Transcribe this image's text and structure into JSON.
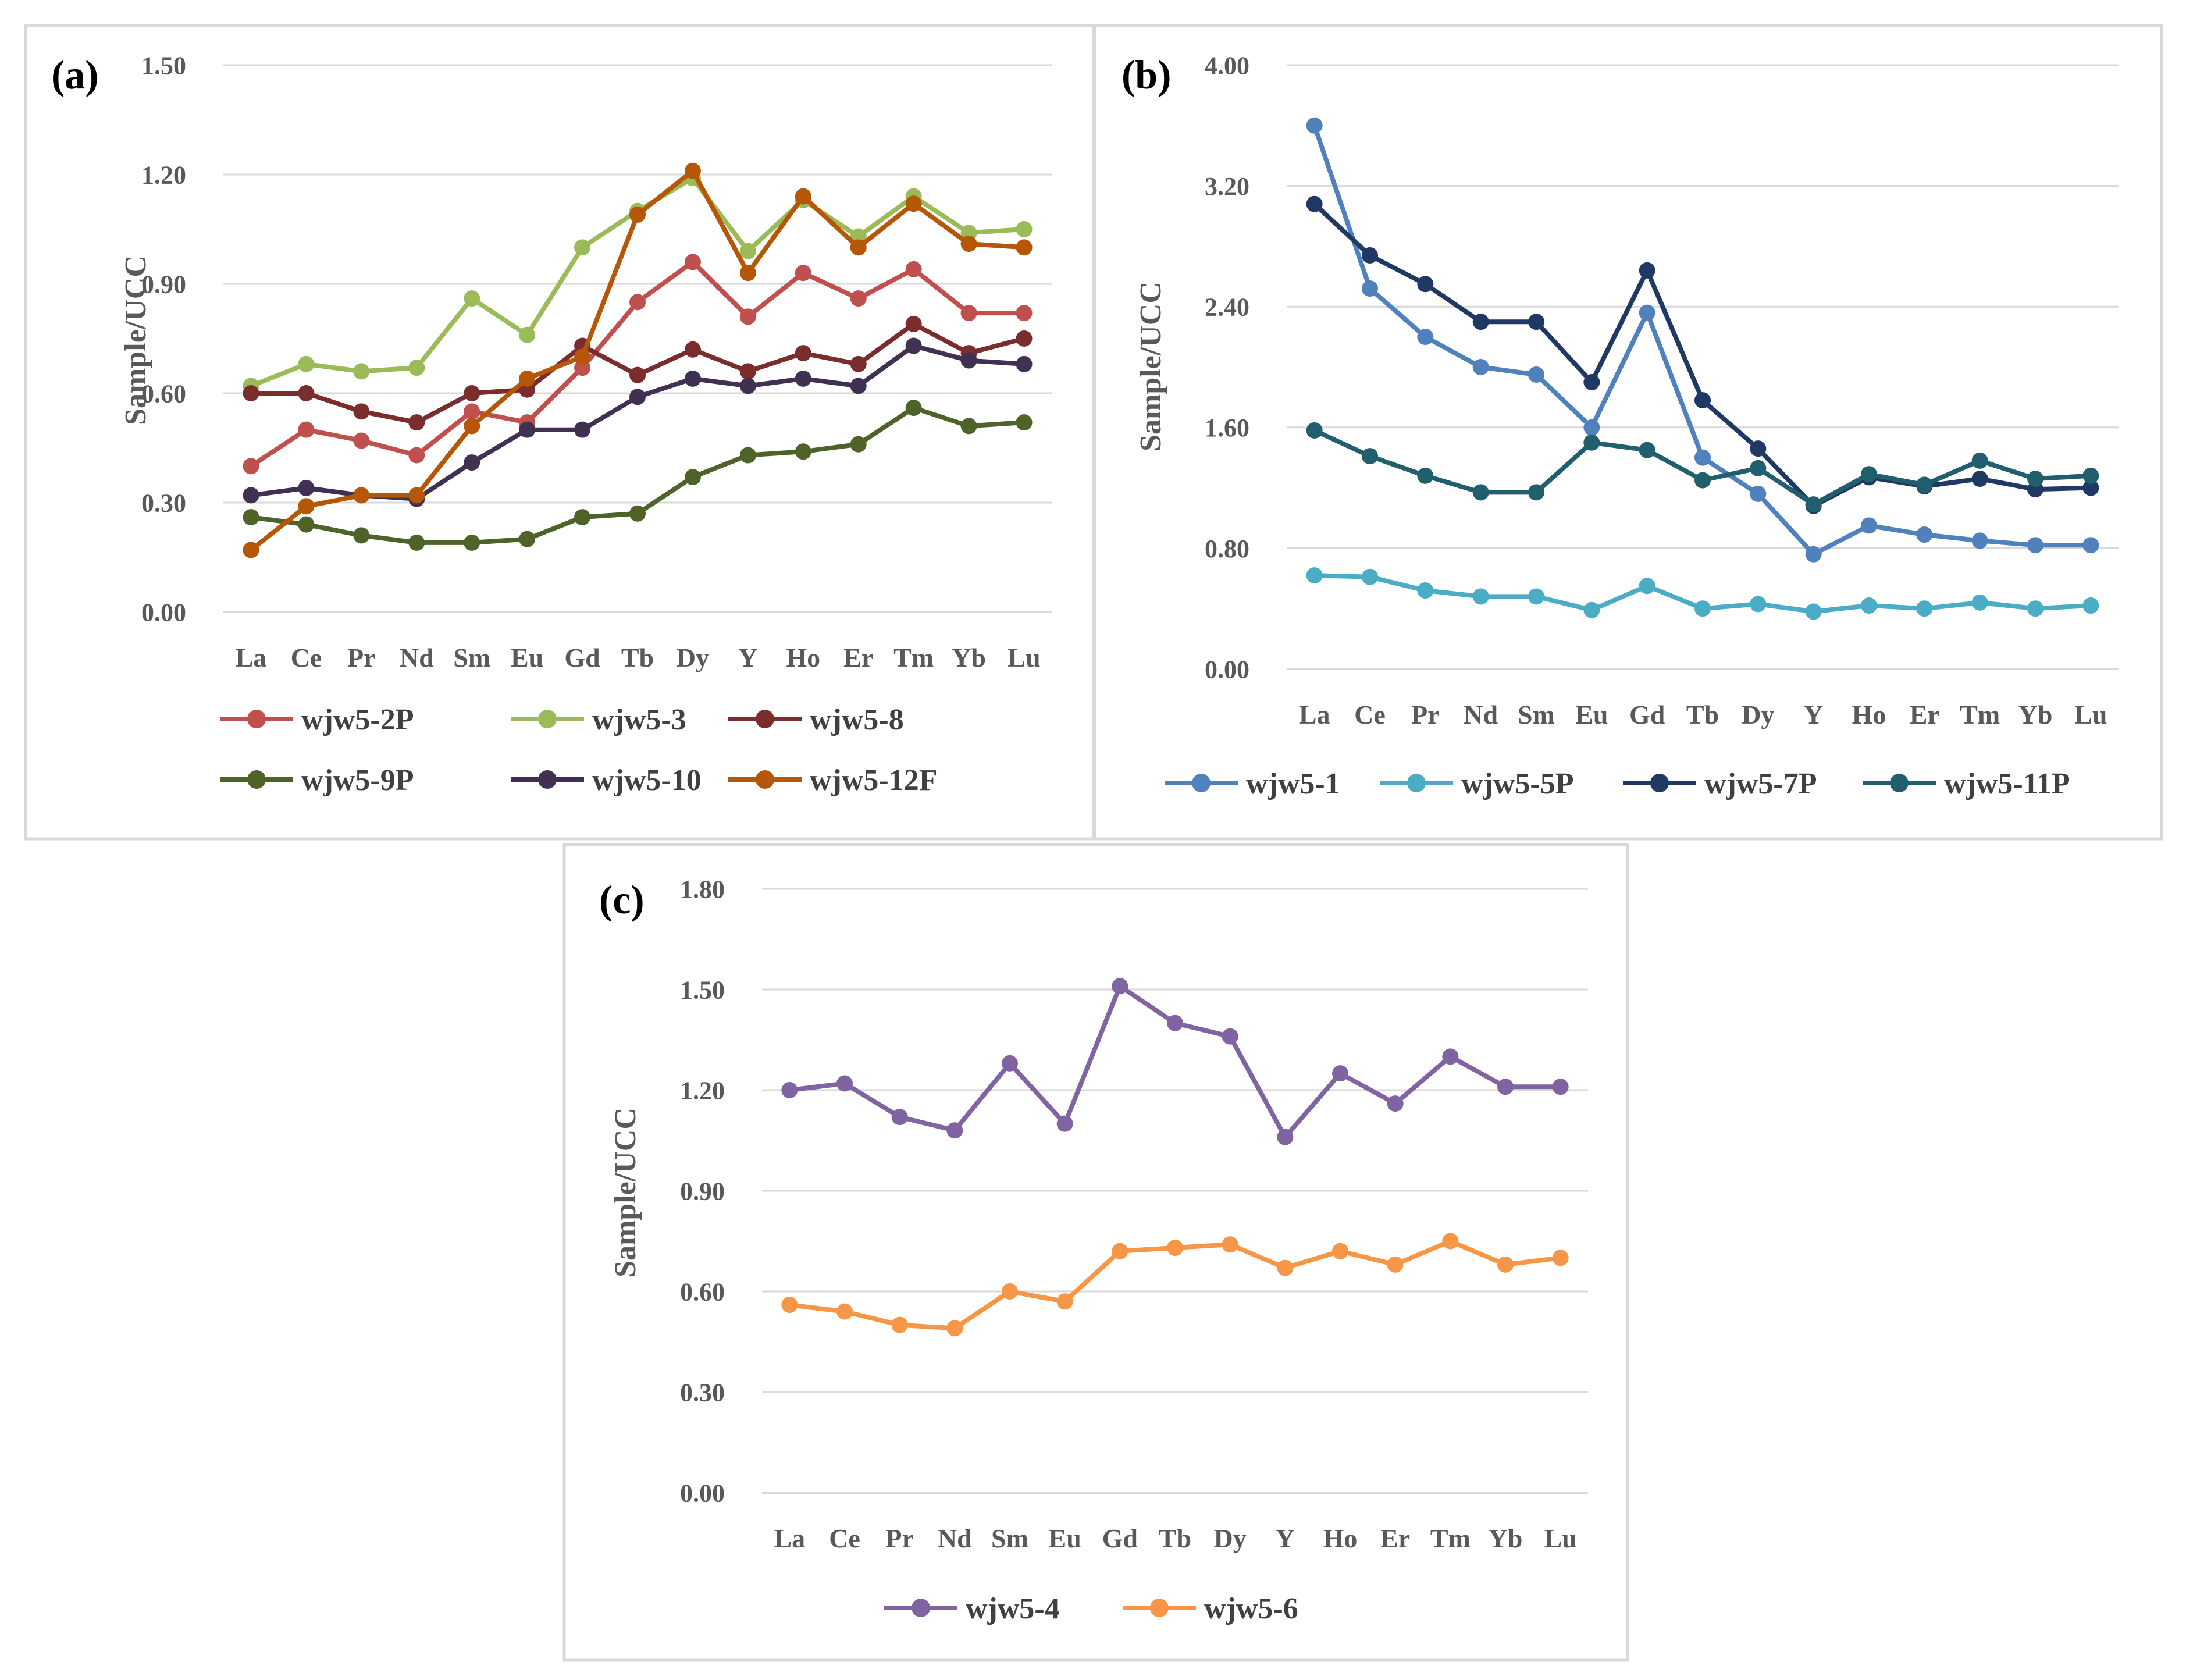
{
  "figure": {
    "colors": {
      "grid": "#d9d9d9",
      "axis": "#d9d9d9",
      "text": "#595959",
      "frame": "#d9d9d9"
    }
  },
  "chart_data": [
    {
      "type": "line",
      "panel_label": "(a)",
      "ylabel": "Sample/UCC",
      "ylim": [
        0,
        1.5
      ],
      "yticks": [
        "0.00",
        "0.30",
        "0.60",
        "0.90",
        "1.20",
        "1.50"
      ],
      "categories": [
        "La",
        "Ce",
        "Pr",
        "Nd",
        "Sm",
        "Eu",
        "Gd",
        "Tb",
        "Dy",
        "Y",
        "Ho",
        "Er",
        "Tm",
        "Yb",
        "Lu"
      ],
      "legend_position": "bottom",
      "series": [
        {
          "name": "wjw5-2P",
          "color": "#c0504d",
          "values": [
            0.4,
            0.5,
            0.47,
            0.43,
            0.55,
            0.52,
            0.67,
            0.85,
            0.96,
            0.81,
            0.93,
            0.86,
            0.94,
            0.82,
            0.82
          ]
        },
        {
          "name": "wjw5-3",
          "color": "#9bbb59",
          "values": [
            0.62,
            0.68,
            0.66,
            0.67,
            0.86,
            0.76,
            1.0,
            1.1,
            1.19,
            0.99,
            1.13,
            1.03,
            1.14,
            1.04,
            1.05
          ]
        },
        {
          "name": "wjw5-8",
          "color": "#7b2c2c",
          "values": [
            0.6,
            0.6,
            0.55,
            0.52,
            0.6,
            0.61,
            0.73,
            0.65,
            0.72,
            0.66,
            0.71,
            0.68,
            0.79,
            0.71,
            0.75
          ]
        },
        {
          "name": "wjw5-9P",
          "color": "#4f6228",
          "values": [
            0.26,
            0.24,
            0.21,
            0.19,
            0.19,
            0.2,
            0.26,
            0.27,
            0.37,
            0.43,
            0.44,
            0.46,
            0.56,
            0.51,
            0.52
          ]
        },
        {
          "name": "wjw5-10",
          "color": "#403152",
          "values": [
            0.32,
            0.34,
            0.32,
            0.31,
            0.41,
            0.5,
            0.5,
            0.59,
            0.64,
            0.62,
            0.64,
            0.62,
            0.73,
            0.69,
            0.68
          ]
        },
        {
          "name": "wjw5-12F",
          "color": "#b65708",
          "values": [
            0.17,
            0.29,
            0.32,
            0.32,
            0.51,
            0.64,
            0.7,
            1.09,
            1.21,
            0.93,
            1.14,
            1.0,
            1.12,
            1.01,
            1.0
          ]
        }
      ]
    },
    {
      "type": "line",
      "panel_label": "(b)",
      "ylabel": "Sample/UCC",
      "ylim": [
        0,
        4.0
      ],
      "yticks": [
        "0.00",
        "0.80",
        "1.60",
        "2.40",
        "3.20",
        "4.00"
      ],
      "categories": [
        "La",
        "Ce",
        "Pr",
        "Nd",
        "Sm",
        "Eu",
        "Gd",
        "Tb",
        "Dy",
        "Y",
        "Ho",
        "Er",
        "Tm",
        "Yb",
        "Lu"
      ],
      "legend_position": "bottom",
      "series": [
        {
          "name": "wjw5-1",
          "color": "#4f81bd",
          "values": [
            3.6,
            2.52,
            2.2,
            2.0,
            1.95,
            1.6,
            2.36,
            1.4,
            1.16,
            0.76,
            0.95,
            0.89,
            0.85,
            0.82,
            0.82
          ]
        },
        {
          "name": "wjw5-5P",
          "color": "#4bacc6",
          "values": [
            0.62,
            0.61,
            0.52,
            0.48,
            0.48,
            0.39,
            0.55,
            0.4,
            0.43,
            0.38,
            0.42,
            0.4,
            0.44,
            0.4,
            0.42
          ]
        },
        {
          "name": "wjw5-7P",
          "color": "#1f3864",
          "values": [
            3.08,
            2.74,
            2.55,
            2.3,
            2.3,
            1.9,
            2.64,
            1.78,
            1.46,
            1.08,
            1.27,
            1.21,
            1.26,
            1.19,
            1.2
          ]
        },
        {
          "name": "wjw5-11P",
          "color": "#215f6e",
          "values": [
            1.58,
            1.41,
            1.28,
            1.17,
            1.17,
            1.5,
            1.45,
            1.25,
            1.33,
            1.09,
            1.29,
            1.22,
            1.38,
            1.26,
            1.28
          ]
        }
      ]
    },
    {
      "type": "line",
      "panel_label": "(c)",
      "ylabel": "Sample/UCC",
      "ylim": [
        0,
        1.8
      ],
      "yticks": [
        "0.00",
        "0.30",
        "0.60",
        "0.90",
        "1.20",
        "1.50",
        "1.80"
      ],
      "categories": [
        "La",
        "Ce",
        "Pr",
        "Nd",
        "Sm",
        "Eu",
        "Gd",
        "Tb",
        "Dy",
        "Y",
        "Ho",
        "Er",
        "Tm",
        "Yb",
        "Lu"
      ],
      "legend_position": "bottom",
      "series": [
        {
          "name": "wjw5-4",
          "color": "#8064a2",
          "values": [
            1.2,
            1.22,
            1.12,
            1.08,
            1.28,
            1.1,
            1.51,
            1.4,
            1.36,
            1.06,
            1.25,
            1.16,
            1.3,
            1.21,
            1.21
          ]
        },
        {
          "name": "wjw5-6",
          "color": "#f79646",
          "values": [
            0.56,
            0.54,
            0.5,
            0.49,
            0.6,
            0.57,
            0.72,
            0.73,
            0.74,
            0.67,
            0.72,
            0.68,
            0.75,
            0.68,
            0.7
          ]
        }
      ]
    }
  ]
}
